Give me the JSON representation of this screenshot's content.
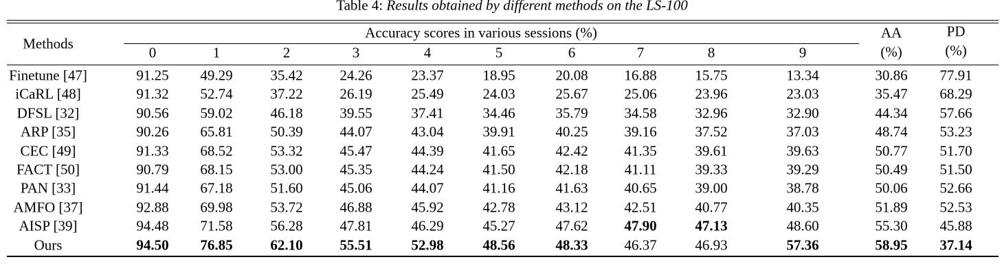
{
  "caption": {
    "label": "Table 4:",
    "text": "Results obtained by different methods on the LS-100"
  },
  "table": {
    "methods_header": "Methods",
    "sessions_header": "Accuracy scores in various sessions (%)",
    "sessions": [
      "0",
      "1",
      "2",
      "3",
      "4",
      "5",
      "6",
      "7",
      "8",
      "9"
    ],
    "aa_header": [
      "AA",
      "(%)"
    ],
    "pd_header": [
      "PD",
      "(%)"
    ],
    "rows": [
      {
        "method": "Finetune [47]",
        "values": [
          "91.25",
          "49.29",
          "35.42",
          "24.26",
          "23.37",
          "18.95",
          "20.08",
          "16.88",
          "15.75",
          "13.34",
          "30.86",
          "77.91"
        ],
        "bold": []
      },
      {
        "method": "iCaRL [48]",
        "values": [
          "91.32",
          "52.74",
          "37.22",
          "26.19",
          "25.49",
          "24.03",
          "25.67",
          "25.06",
          "23.96",
          "23.03",
          "35.47",
          "68.29"
        ],
        "bold": []
      },
      {
        "method": "DFSL [32]",
        "values": [
          "90.56",
          "59.02",
          "46.18",
          "39.55",
          "37.41",
          "34.46",
          "35.79",
          "34.58",
          "32.96",
          "32.90",
          "44.34",
          "57.66"
        ],
        "bold": []
      },
      {
        "method": "ARP [35]",
        "values": [
          "90.26",
          "65.81",
          "50.39",
          "44.07",
          "43.04",
          "39.91",
          "40.25",
          "39.16",
          "37.52",
          "37.03",
          "48.74",
          "53.23"
        ],
        "bold": []
      },
      {
        "method": "CEC [49]",
        "values": [
          "91.33",
          "68.52",
          "53.32",
          "45.47",
          "44.39",
          "41.65",
          "42.42",
          "41.35",
          "39.61",
          "39.63",
          "50.77",
          "51.70"
        ],
        "bold": []
      },
      {
        "method": "FACT [50]",
        "values": [
          "90.79",
          "68.15",
          "53.00",
          "45.35",
          "44.24",
          "41.50",
          "42.18",
          "41.11",
          "39.33",
          "39.29",
          "50.49",
          "51.50"
        ],
        "bold": []
      },
      {
        "method": "PAN [33]",
        "values": [
          "91.44",
          "67.18",
          "51.60",
          "45.06",
          "44.07",
          "41.16",
          "41.63",
          "40.65",
          "39.00",
          "38.78",
          "50.06",
          "52.66"
        ],
        "bold": []
      },
      {
        "method": "AMFO [37]",
        "values": [
          "92.88",
          "69.98",
          "53.72",
          "46.88",
          "45.92",
          "42.78",
          "43.12",
          "42.51",
          "40.77",
          "40.35",
          "51.89",
          "52.53"
        ],
        "bold": []
      },
      {
        "method": "AISP [39]",
        "values": [
          "94.48",
          "71.58",
          "56.28",
          "47.81",
          "46.29",
          "45.27",
          "47.62",
          "47.90",
          "47.13",
          "48.60",
          "55.30",
          "45.88"
        ],
        "bold": [
          7,
          8
        ]
      },
      {
        "method": "Ours",
        "values": [
          "94.50",
          "76.85",
          "62.10",
          "55.51",
          "52.98",
          "48.56",
          "48.33",
          "46.37",
          "46.93",
          "57.36",
          "58.95",
          "37.14"
        ],
        "bold": [
          0,
          1,
          2,
          3,
          4,
          5,
          6,
          9,
          10,
          11
        ]
      }
    ]
  }
}
